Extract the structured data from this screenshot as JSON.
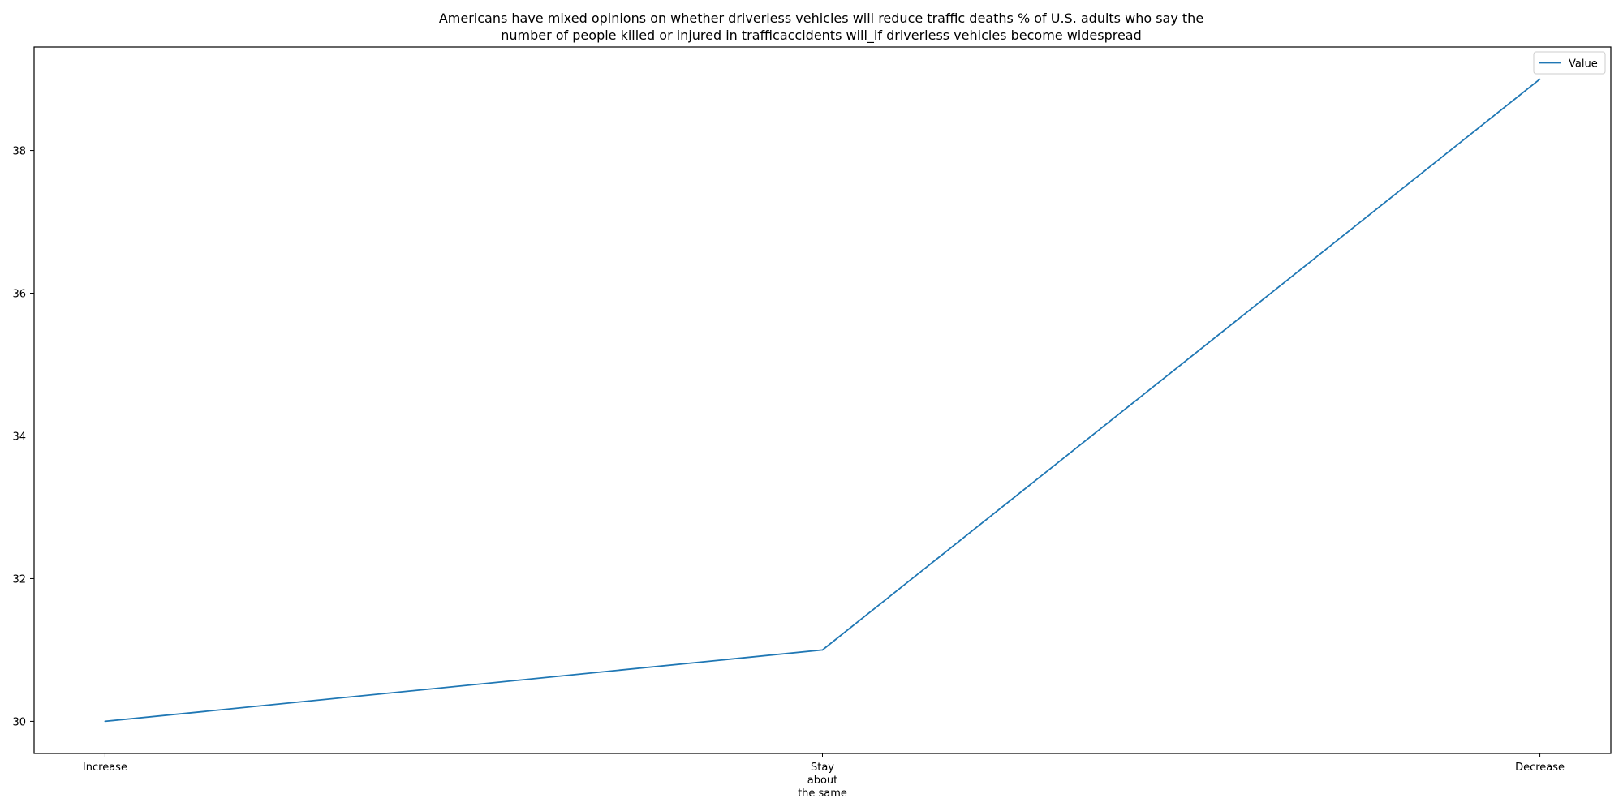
{
  "chart_data": {
    "type": "line",
    "title": [
      "Americans have mixed opinions on whether driverless vehicles will reduce traffic deaths % of U.S. adults who say the",
      "number of people killed or injured in trafficaccidents will_if driverless vehicles become widespread"
    ],
    "xlabel": "",
    "ylabel": "",
    "categories": [
      [
        "Increase"
      ],
      [
        "Stay",
        "about",
        "the same"
      ],
      [
        "Decrease"
      ]
    ],
    "series": [
      {
        "name": "Value",
        "values": [
          30,
          31,
          39
        ],
        "color": "#1f77b4"
      }
    ],
    "ylim": [
      29.55,
      39.45
    ],
    "yticks": [
      30,
      32,
      34,
      36,
      38
    ],
    "grid": false,
    "legend_position": "top-right"
  }
}
